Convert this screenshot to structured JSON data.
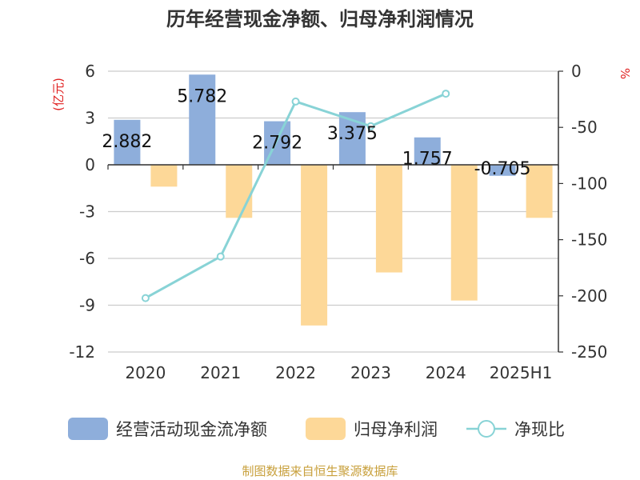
{
  "chart_data": {
    "type": "bar",
    "title": "历年经营现金净额、归母净利润情况",
    "categories": [
      "2020",
      "2021",
      "2022",
      "2023",
      "2024",
      "2025H1"
    ],
    "y_left": {
      "unit": "(亿元)",
      "ticks": [
        6,
        3,
        0,
        -3,
        -6,
        -9,
        -12
      ],
      "range": [
        -12,
        6
      ]
    },
    "y_right": {
      "unit": "%",
      "ticks": [
        0,
        -50,
        -100,
        -150,
        -200,
        -250
      ],
      "range": [
        -250,
        0
      ]
    },
    "series": [
      {
        "name": "经营活动现金流净额",
        "kind": "bar",
        "axis": "left",
        "color": "#8eaedb",
        "values": [
          2.882,
          5.782,
          2.792,
          3.375,
          1.757,
          -0.705
        ],
        "labels": [
          "2.882",
          "5.782",
          "2.792",
          "3.375",
          "1.757",
          "-0.705"
        ]
      },
      {
        "name": "归母净利润",
        "kind": "bar",
        "axis": "left",
        "color": "#fdd898",
        "values": [
          -1.4,
          -3.4,
          -10.3,
          -6.9,
          -8.7,
          -3.4
        ]
      },
      {
        "name": "净现比",
        "kind": "line",
        "axis": "right",
        "color": "#88d3d6",
        "values": [
          -202,
          -165,
          -27,
          -49,
          -20,
          null
        ]
      }
    ],
    "legend_position": "bottom",
    "grid": true
  },
  "footer": {
    "source": "制图数据来自恒生聚源数据库"
  }
}
